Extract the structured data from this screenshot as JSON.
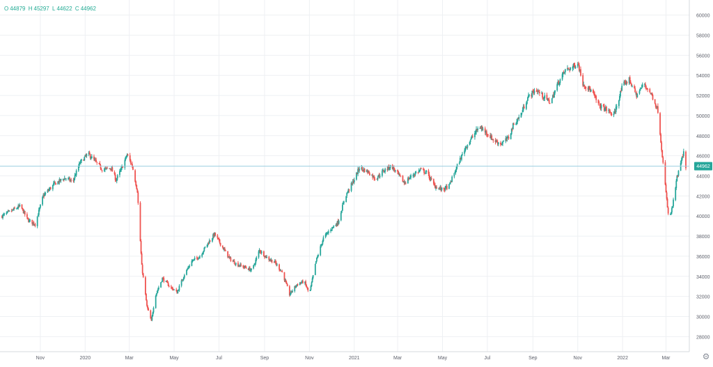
{
  "legend": {
    "o_label": "O",
    "o_value": "44879",
    "h_label": "H",
    "h_value": "45297",
    "l_label": "L",
    "l_value": "44622",
    "c_label": "C",
    "c_value": "44962"
  },
  "last_price_label": "44962",
  "colors": {
    "up": "#26a69a",
    "down": "#ef5350",
    "price_line": "#9ccfe0",
    "badge": "#26a69a",
    "legend_text": "#22ab94",
    "grid": "#eef0f3",
    "axis_text": "#5d606b"
  },
  "chart_data": {
    "type": "candlestick",
    "y_ticks": [
      28000,
      30000,
      32000,
      34000,
      36000,
      38000,
      40000,
      42000,
      44000,
      46000,
      48000,
      50000,
      52000,
      54000,
      56000,
      58000,
      60000
    ],
    "ylim": [
      26500,
      61500
    ],
    "x_ticks": [
      {
        "label": "Nov",
        "date": "2019-11-01"
      },
      {
        "label": "2020",
        "date": "2020-01-01"
      },
      {
        "label": "Mar",
        "date": "2020-03-01"
      },
      {
        "label": "May",
        "date": "2020-05-01"
      },
      {
        "label": "Jul",
        "date": "2020-07-01"
      },
      {
        "label": "Sep",
        "date": "2020-09-01"
      },
      {
        "label": "Nov",
        "date": "2020-11-01"
      },
      {
        "label": "2021",
        "date": "2021-01-01"
      },
      {
        "label": "Mar",
        "date": "2021-03-01"
      },
      {
        "label": "May",
        "date": "2021-05-01"
      },
      {
        "label": "Jul",
        "date": "2021-07-01"
      },
      {
        "label": "Sep",
        "date": "2021-09-01"
      },
      {
        "label": "Nov",
        "date": "2021-11-01"
      },
      {
        "label": "2022",
        "date": "2022-01-01"
      },
      {
        "label": "Mar",
        "date": "2022-03-01"
      }
    ],
    "xlim": [
      "2019-09-10",
      "2022-03-28"
    ],
    "last_price": 44962,
    "trend": [
      [
        "2019-09-10",
        40000
      ],
      [
        "2019-09-25",
        40600
      ],
      [
        "2019-10-05",
        41000
      ],
      [
        "2019-10-15",
        39600
      ],
      [
        "2019-10-25",
        39200
      ],
      [
        "2019-11-05",
        42000
      ],
      [
        "2019-11-20",
        43200
      ],
      [
        "2019-12-05",
        43800
      ],
      [
        "2019-12-15",
        43400
      ],
      [
        "2019-12-25",
        45300
      ],
      [
        "2020-01-05",
        46200
      ],
      [
        "2020-01-15",
        45400
      ],
      [
        "2020-01-25",
        44600
      ],
      [
        "2020-02-05",
        44800
      ],
      [
        "2020-02-12",
        43600
      ],
      [
        "2020-02-20",
        44800
      ],
      [
        "2020-02-27",
        46100
      ],
      [
        "2020-03-05",
        45000
      ],
      [
        "2020-03-12",
        42500
      ],
      [
        "2020-03-18",
        35000
      ],
      [
        "2020-03-25",
        31000
      ],
      [
        "2020-03-31",
        29500
      ],
      [
        "2020-04-05",
        32000
      ],
      [
        "2020-04-15",
        33800
      ],
      [
        "2020-04-25",
        33000
      ],
      [
        "2020-05-05",
        32400
      ],
      [
        "2020-05-15",
        34200
      ],
      [
        "2020-05-25",
        35500
      ],
      [
        "2020-06-05",
        36000
      ],
      [
        "2020-06-15",
        37200
      ],
      [
        "2020-06-25",
        38200
      ],
      [
        "2020-07-05",
        37000
      ],
      [
        "2020-07-15",
        35800
      ],
      [
        "2020-07-25",
        35200
      ],
      [
        "2020-08-05",
        34900
      ],
      [
        "2020-08-15",
        34600
      ],
      [
        "2020-08-25",
        36600
      ],
      [
        "2020-09-05",
        35800
      ],
      [
        "2020-09-15",
        35400
      ],
      [
        "2020-09-25",
        34400
      ],
      [
        "2020-10-05",
        32200
      ],
      [
        "2020-10-15",
        33200
      ],
      [
        "2020-10-25",
        33500
      ],
      [
        "2020-11-01",
        32200
      ],
      [
        "2020-11-10",
        35500
      ],
      [
        "2020-11-20",
        37800
      ],
      [
        "2020-11-30",
        38700
      ],
      [
        "2020-12-10",
        39400
      ],
      [
        "2020-12-20",
        42000
      ],
      [
        "2020-12-31",
        43500
      ],
      [
        "2021-01-08",
        44800
      ],
      [
        "2021-01-20",
        44400
      ],
      [
        "2021-01-30",
        43700
      ],
      [
        "2021-02-10",
        44500
      ],
      [
        "2021-02-20",
        45000
      ],
      [
        "2021-03-01",
        44200
      ],
      [
        "2021-03-10",
        43300
      ],
      [
        "2021-03-20",
        44000
      ],
      [
        "2021-04-01",
        44600
      ],
      [
        "2021-04-10",
        44300
      ],
      [
        "2021-04-20",
        43000
      ],
      [
        "2021-05-01",
        42600
      ],
      [
        "2021-05-10",
        43000
      ],
      [
        "2021-05-20",
        44800
      ],
      [
        "2021-06-01",
        46800
      ],
      [
        "2021-06-10",
        47800
      ],
      [
        "2021-06-20",
        48900
      ],
      [
        "2021-06-30",
        48300
      ],
      [
        "2021-07-10",
        47500
      ],
      [
        "2021-07-20",
        47200
      ],
      [
        "2021-07-30",
        47800
      ],
      [
        "2021-08-05",
        49000
      ],
      [
        "2021-08-15",
        50000
      ],
      [
        "2021-08-25",
        51800
      ],
      [
        "2021-09-05",
        52600
      ],
      [
        "2021-09-15",
        51900
      ],
      [
        "2021-09-25",
        51300
      ],
      [
        "2021-10-05",
        53200
      ],
      [
        "2021-10-15",
        54500
      ],
      [
        "2021-10-25",
        54800
      ],
      [
        "2021-11-01",
        55300
      ],
      [
        "2021-11-08",
        53200
      ],
      [
        "2021-11-20",
        52400
      ],
      [
        "2021-11-30",
        51000
      ],
      [
        "2021-12-10",
        50600
      ],
      [
        "2021-12-20",
        50000
      ],
      [
        "2022-01-01",
        53000
      ],
      [
        "2022-01-10",
        53600
      ],
      [
        "2022-01-20",
        52000
      ],
      [
        "2022-01-30",
        53200
      ],
      [
        "2022-02-10",
        52000
      ],
      [
        "2022-02-18",
        50500
      ],
      [
        "2022-02-24",
        46000
      ],
      [
        "2022-02-28",
        43000
      ],
      [
        "2022-03-05",
        39500
      ],
      [
        "2022-03-10",
        41000
      ],
      [
        "2022-03-16",
        43800
      ],
      [
        "2022-03-22",
        45500
      ],
      [
        "2022-03-26",
        46500
      ],
      [
        "2022-03-28",
        44962
      ]
    ]
  }
}
